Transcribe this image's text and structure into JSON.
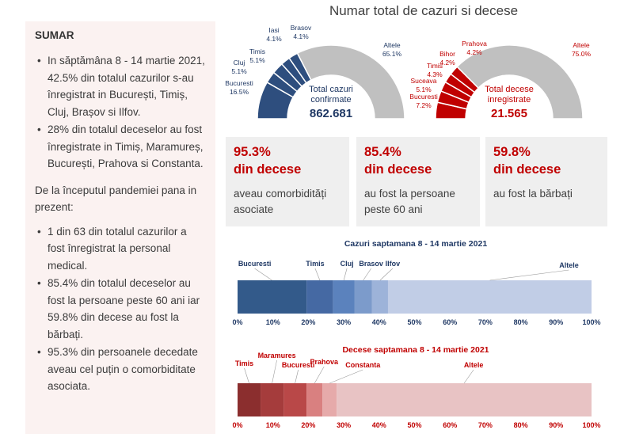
{
  "summary": {
    "title": "SUMAR",
    "bullets1": [
      "In săptămâna 8 - 14 martie 2021, 42.5% din totalul cazurilor s-au înregistrat in București, Timiș, Cluj, Brașov si Ilfov.",
      "28% din totalul deceselor au fost înregistrate in Timiș, Maramureș, București, Prahova si Constanta."
    ],
    "paragraph": "De la începutul pandemiei pana in prezent:",
    "bullets2": [
      "1 din 63 din totalul cazurilor a fost înregistrat la personal medical.",
      "85.4% din totalul deceselor au fost la persoane peste 60 ani iar 59.8% din decese au fost la bărbați.",
      "95.3% din persoanele decedate aveau cel puțin o comorbiditate asociata."
    ],
    "bullet_char": "•"
  },
  "title": "Numar total de cazuri si decese",
  "kpis": [
    {
      "value": "95.3%",
      "value_line2": "din decese",
      "desc": "aveau comorbidități asociate"
    },
    {
      "value": "85.4%",
      "value_line2": "din decese",
      "desc": "au fost la persoane peste 60 ani"
    },
    {
      "value": "59.8%",
      "value_line2": "din decese",
      "desc": "au fost la bărbați"
    }
  ],
  "colors": {
    "blue_dark": "#2e4e7e",
    "red_dark": "#c00000",
    "grey": "#c0c0c0"
  },
  "chart_data": [
    {
      "type": "pie",
      "subtype": "half-donut",
      "center_label": "Total cazuri confirmate",
      "center_label_lines": [
        "Total cazuri",
        "confirmate"
      ],
      "total": "862.681",
      "slices": [
        {
          "name": "Bucuresti",
          "value": 16.5,
          "label": "16.5%",
          "color": "#2e4e7e"
        },
        {
          "name": "Cluj",
          "value": 5.1,
          "label": "5.1%",
          "color": "#2e4e7e"
        },
        {
          "name": "Timis",
          "value": 5.1,
          "label": "5.1%",
          "color": "#2e4e7e"
        },
        {
          "name": "Iasi",
          "value": 4.1,
          "label": "4.1%",
          "color": "#2e4e7e"
        },
        {
          "name": "Brasov",
          "value": 4.1,
          "label": "4.1%",
          "color": "#2e4e7e"
        },
        {
          "name": "Altele",
          "value": 65.1,
          "label": "65.1%",
          "color": "#c0c0c0"
        }
      ]
    },
    {
      "type": "pie",
      "subtype": "half-donut",
      "center_label": "Total decese inregistrate",
      "center_label_lines": [
        "Total decese",
        "inregistrate"
      ],
      "total": "21.565",
      "slices": [
        {
          "name": "Bucuresti",
          "value": 7.2,
          "label": "7.2%",
          "color": "#c00000"
        },
        {
          "name": "Suceava",
          "value": 5.1,
          "label": "5.1%",
          "color": "#c00000"
        },
        {
          "name": "Timis",
          "value": 4.3,
          "label": "4.3%",
          "color": "#c00000"
        },
        {
          "name": "Bihor",
          "value": 4.2,
          "label": "4.2%",
          "color": "#c00000"
        },
        {
          "name": "Prahova",
          "value": 4.2,
          "label": "4.2%",
          "color": "#c00000"
        },
        {
          "name": "Altele",
          "value": 75.0,
          "label": "75.0%",
          "color": "#c0c0c0"
        }
      ]
    },
    {
      "type": "bar",
      "subtype": "stacked-horizontal-100",
      "title": "Cazuri saptamana 8 - 14 martie 2021",
      "xlim": [
        0,
        100
      ],
      "ticks": [
        "0%",
        "10%",
        "20%",
        "30%",
        "40%",
        "50%",
        "60%",
        "70%",
        "80%",
        "90%",
        "100%"
      ],
      "segments": [
        {
          "name": "Bucuresti",
          "value": 19.5,
          "color": "#335a8a"
        },
        {
          "name": "Timis",
          "value": 7.5,
          "color": "#4569a3"
        },
        {
          "name": "Cluj",
          "value": 6.0,
          "color": "#5b82bd"
        },
        {
          "name": "Brasov",
          "value": 5.0,
          "color": "#7c9bcb"
        },
        {
          "name": "Ilfov",
          "value": 4.5,
          "color": "#9db3d9"
        },
        {
          "name": "Altele",
          "value": 57.5,
          "color": "#c1cde6"
        }
      ],
      "label_color": "#1f3864"
    },
    {
      "type": "bar",
      "subtype": "stacked-horizontal-100",
      "title": "Decese saptamana 8 - 14 martie 2021",
      "xlim": [
        0,
        100
      ],
      "ticks": [
        "0%",
        "10%",
        "20%",
        "30%",
        "40%",
        "50%",
        "60%",
        "70%",
        "80%",
        "90%",
        "100%"
      ],
      "segments": [
        {
          "name": "Timis",
          "value": 6.5,
          "color": "#8b2e2e"
        },
        {
          "name": "Maramures",
          "value": 6.5,
          "color": "#a53c3c"
        },
        {
          "name": "Bucuresti",
          "value": 6.5,
          "color": "#b94848"
        },
        {
          "name": "Prahova",
          "value": 4.5,
          "color": "#d98080"
        },
        {
          "name": "Constanta",
          "value": 4.0,
          "color": "#e6aaaa"
        },
        {
          "name": "Altele",
          "value": 72.0,
          "color": "#e8c3c4"
        }
      ],
      "label_color": "#c00000"
    }
  ]
}
